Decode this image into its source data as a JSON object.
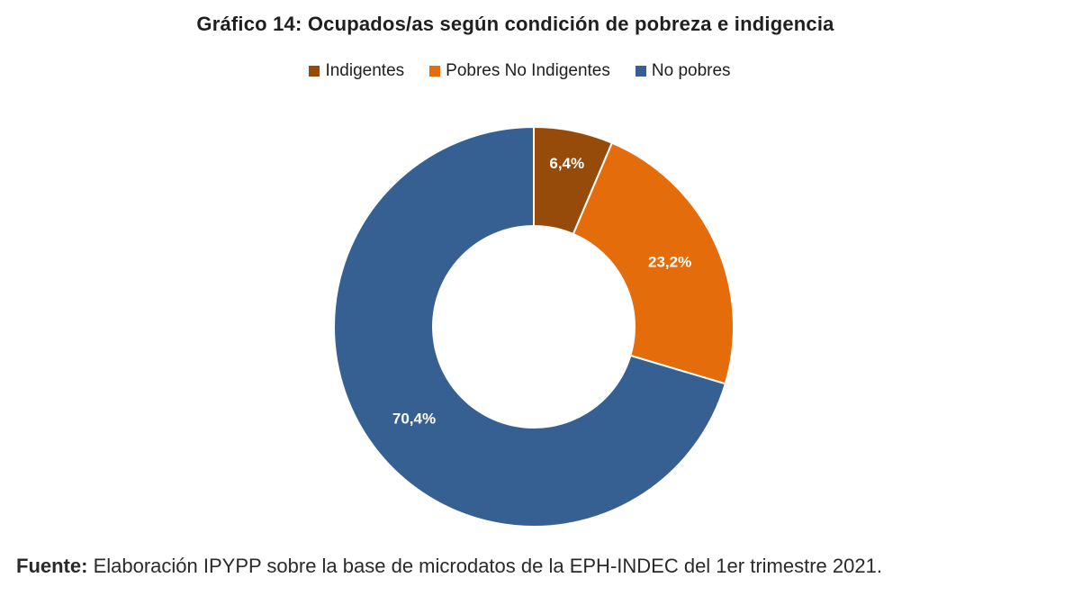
{
  "chart_data": {
    "type": "pie",
    "title": "Gráfico 14: Ocupados/as según condición de pobreza e indigencia",
    "legend_position": "top",
    "categories": [
      "Indigentes",
      "Pobres No Indigentes",
      "No pobres"
    ],
    "values": [
      6.4,
      23.2,
      70.4
    ],
    "value_labels": [
      "6,4%",
      "23,2%",
      "70,4%"
    ],
    "colors": [
      "#964B0A",
      "#E46C0A",
      "#376092"
    ],
    "donut": true
  },
  "source": {
    "label": "Fuente:",
    "text": "Elaboración IPYPP sobre la base de microdatos de la EPH-INDEC del 1er trimestre 2021."
  }
}
